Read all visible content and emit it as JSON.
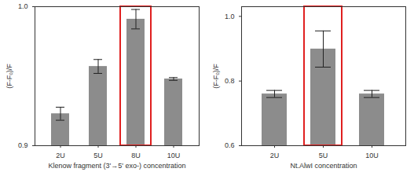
{
  "chart_data": [
    {
      "type": "bar",
      "x_label": "Klenow fragment (3'→5' exo-) concentration",
      "y_label": "(F-F₀)/F",
      "categories": [
        "2U",
        "5U",
        "8U",
        "10U"
      ],
      "values": [
        0.923,
        0.957,
        0.991,
        0.948
      ],
      "errors": [
        0.0047,
        0.005,
        0.007,
        0.001
      ],
      "color": "#8c8c8c",
      "ylim": [
        0.9,
        1.0
      ],
      "yticks": [
        {
          "value": 0.9,
          "label": "0.9"
        },
        {
          "value": 1.0,
          "label": "1.0"
        }
      ],
      "annotations": [
        {
          "type": "box",
          "x": "8U",
          "color": "#e02020"
        }
      ]
    },
    {
      "type": "bar",
      "x_label": "Nt.AlwI concentration",
      "y_label": "(F-F₀)/F",
      "categories": [
        "2U",
        "5U",
        "10U"
      ],
      "values": [
        0.76,
        0.899,
        0.76
      ],
      "errors": [
        0.011,
        0.056,
        0.011
      ],
      "color": "#8c8c8c",
      "ylim": [
        0.6,
        1.03
      ],
      "yticks": [
        {
          "value": 0.6,
          "label": "0.6"
        },
        {
          "value": 0.8,
          "label": "0.8"
        },
        {
          "value": 1.0,
          "label": "1.0"
        }
      ],
      "annotations": [
        {
          "type": "box",
          "x": "5U",
          "color": "#e02020"
        }
      ]
    }
  ]
}
